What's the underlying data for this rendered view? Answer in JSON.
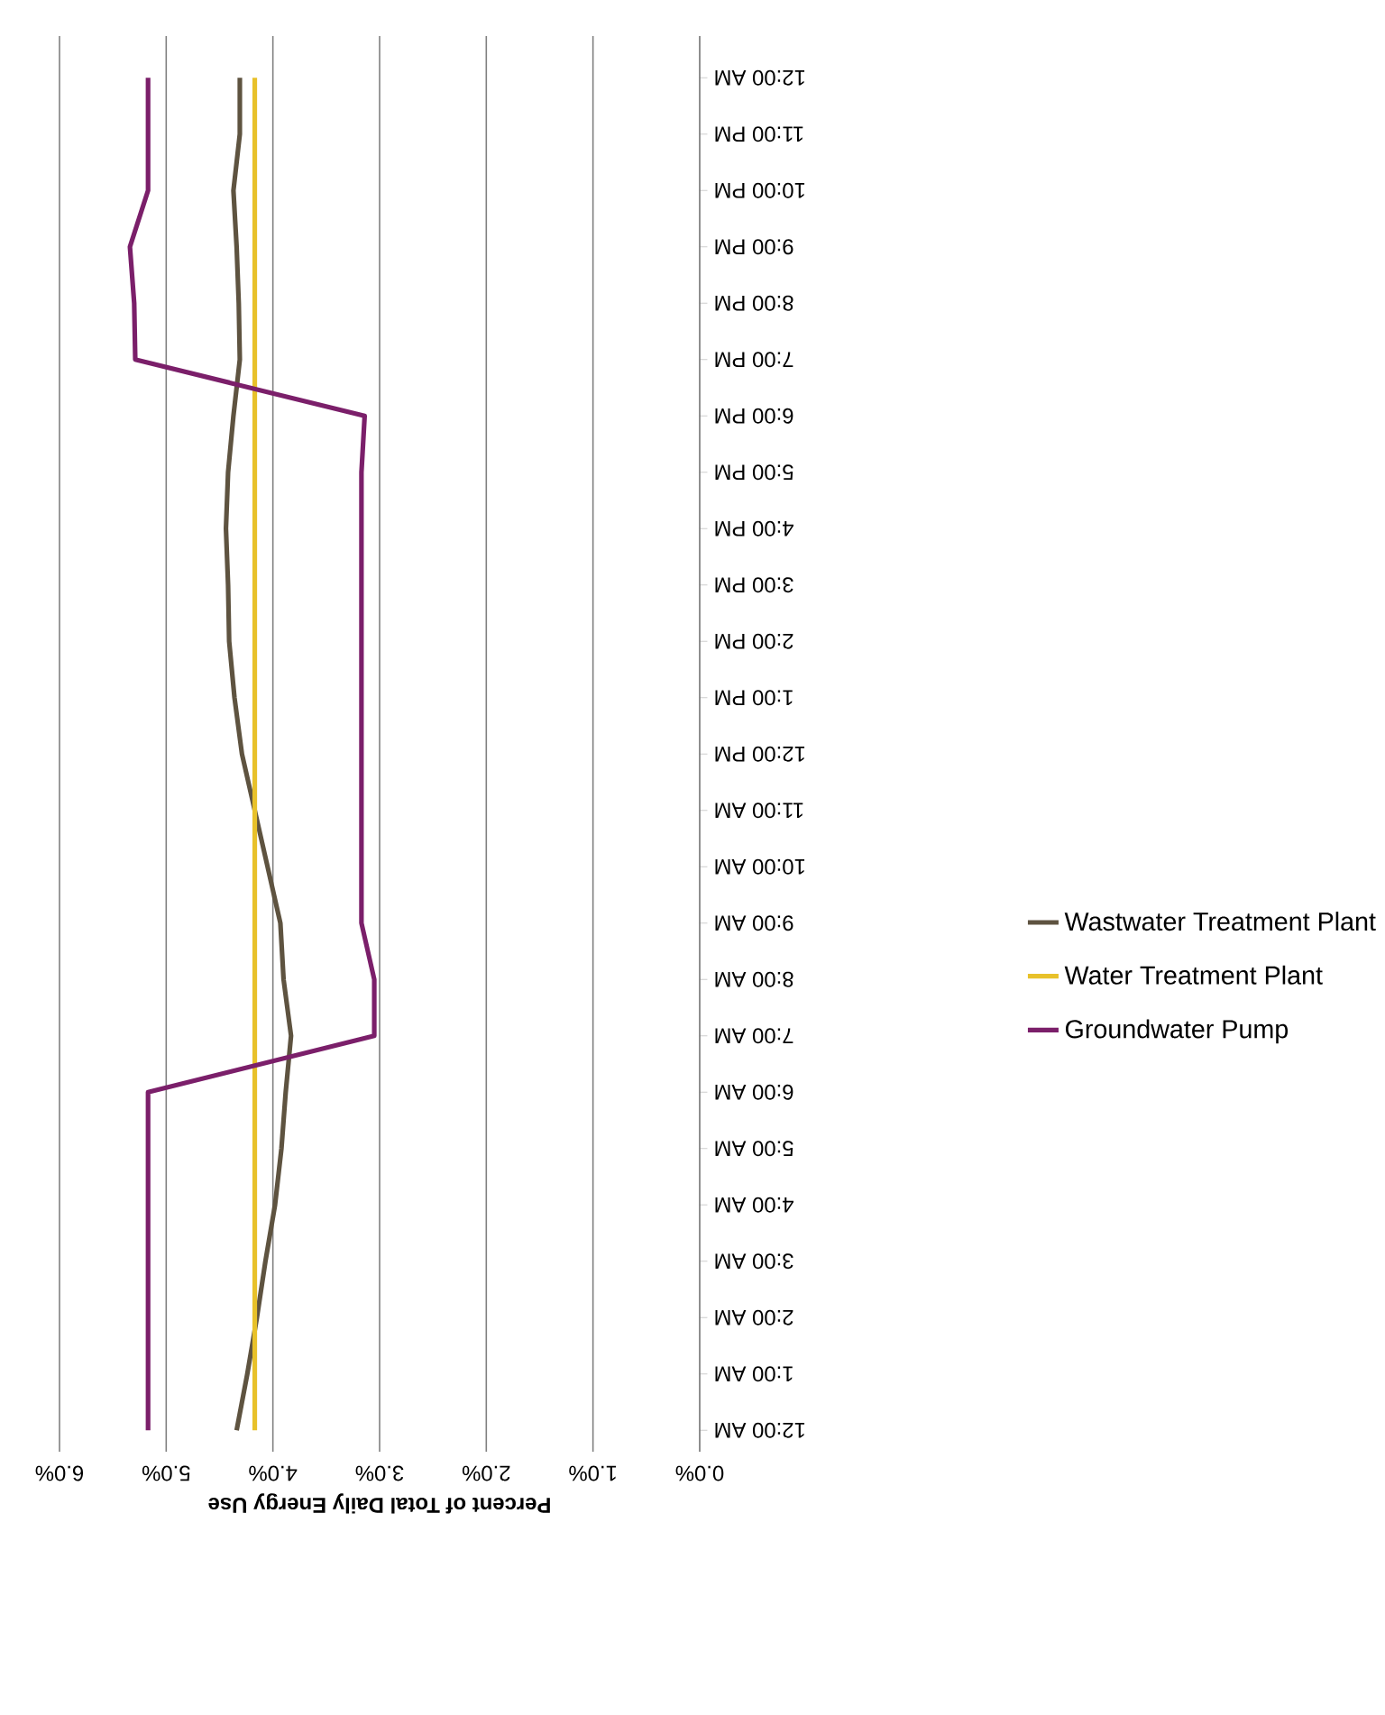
{
  "chart_data": {
    "type": "line",
    "orientation": "horizontal",
    "xlabel": "Percent of Total Daily Energy Use",
    "categories": [
      "12:00 AM",
      "11:00 PM",
      "10:00 PM",
      "9:00 PM",
      "8:00 PM",
      "7:00 PM",
      "6:00 PM",
      "5:00 PM",
      "4:00 PM",
      "3:00 PM",
      "2:00 PM",
      "1:00 PM",
      "12:00 PM",
      "11:00 AM",
      "10:00 AM",
      "9:00 AM",
      "8:00 AM",
      "7:00 AM",
      "6:00 AM",
      "5:00 AM",
      "4:00 AM",
      "3:00 AM",
      "2:00 AM",
      "1:00 AM",
      "12:00 AM"
    ],
    "xlim": [
      6,
      0
    ],
    "xticks": [
      {
        "value": 6,
        "label": "6.0%"
      },
      {
        "value": 5,
        "label": "5.0%"
      },
      {
        "value": 4,
        "label": "4.0%"
      },
      {
        "value": 3,
        "label": "3.0%"
      },
      {
        "value": 2,
        "label": "2.0%"
      },
      {
        "value": 1,
        "label": "1.0%"
      },
      {
        "value": 0,
        "label": "0.0%"
      }
    ],
    "grid": "x",
    "legend": "right",
    "series": [
      {
        "name": "Wastwater Treatment Plant",
        "color": "#5e5340",
        "values": [
          4.31,
          4.31,
          4.37,
          4.34,
          4.32,
          4.31,
          4.37,
          4.42,
          4.44,
          4.42,
          4.41,
          4.36,
          4.29,
          4.17,
          4.05,
          3.93,
          3.9,
          3.83,
          3.88,
          3.92,
          3.98,
          4.07,
          4.15,
          4.24,
          4.34
        ]
      },
      {
        "name": "Water Treatment Plant",
        "color": "#e8c12a",
        "values": [
          4.17,
          4.17,
          4.17,
          4.17,
          4.17,
          4.17,
          4.17,
          4.17,
          4.17,
          4.17,
          4.17,
          4.17,
          4.17,
          4.17,
          4.17,
          4.17,
          4.17,
          4.17,
          4.17,
          4.17,
          4.17,
          4.17,
          4.17,
          4.17,
          4.17
        ]
      },
      {
        "name": "Groundwater Pump",
        "color": "#7b1f6a",
        "values": [
          5.17,
          5.17,
          5.17,
          5.34,
          5.3,
          5.29,
          3.14,
          3.17,
          3.17,
          3.17,
          3.17,
          3.17,
          3.17,
          3.17,
          3.17,
          3.17,
          3.05,
          3.05,
          5.17,
          5.17,
          5.17,
          5.17,
          5.17,
          5.17,
          5.17
        ]
      }
    ]
  }
}
